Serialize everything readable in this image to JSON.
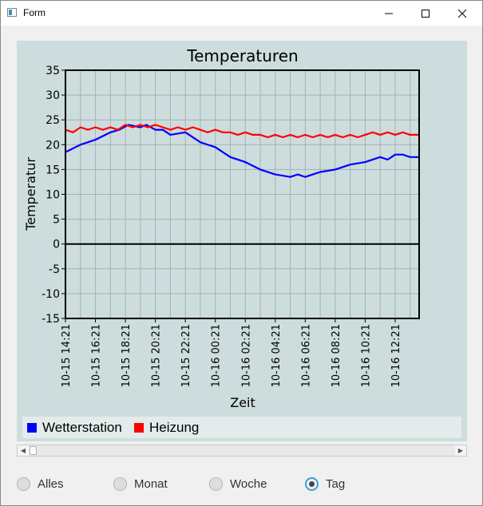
{
  "window": {
    "title": "Form",
    "icon": "form-app-icon"
  },
  "chart_data": {
    "type": "line",
    "title": "Temperaturen",
    "xlabel": "Zeit",
    "ylabel": "Temperatur",
    "ylim": [
      -15,
      35
    ],
    "yticks": [
      35,
      30,
      25,
      20,
      15,
      10,
      5,
      0,
      -5,
      -10,
      -15
    ],
    "x_tick_labels": [
      "10-15 14:21",
      "10-15 16:21",
      "10-15 18:21",
      "10-15 20:21",
      "10-15 22:21",
      "10-16 00:21",
      "10-16 02:21",
      "10-16 04:21",
      "10-16 06:21",
      "10-16 08:21",
      "10-16 10:21",
      "10-16 12:21"
    ],
    "xlim_hours": [
      0,
      23.6
    ],
    "grid": true,
    "legend_placement": "bottom",
    "series": [
      {
        "name": "Wetterstation",
        "color": "#0000ff",
        "x": [
          0,
          1,
          2,
          3,
          3.6,
          4.2,
          5,
          5.4,
          6,
          6.5,
          7,
          8,
          9,
          10,
          11,
          12,
          13,
          14,
          15,
          15.5,
          16,
          16.5,
          17,
          18,
          19,
          20,
          21,
          21.5,
          22,
          22.5,
          23,
          23.6
        ],
        "y": [
          18.5,
          20,
          21,
          22.5,
          23,
          24,
          23.5,
          24,
          23,
          23,
          22,
          22.5,
          20.5,
          19.5,
          17.5,
          16.5,
          15,
          14,
          13.5,
          14,
          13.5,
          14,
          14.5,
          15,
          16,
          16.5,
          17.5,
          17,
          18,
          18,
          17.5,
          17.5
        ]
      },
      {
        "name": "Heizung",
        "color": "#ff0000",
        "x": [
          0,
          0.5,
          1,
          1.5,
          2,
          2.5,
          3,
          3.5,
          4,
          4.5,
          5,
          5.5,
          6,
          6.5,
          7,
          7.5,
          8,
          8.5,
          9,
          9.5,
          10,
          10.5,
          11,
          11.5,
          12,
          12.5,
          13,
          13.5,
          14,
          14.5,
          15,
          15.5,
          16,
          16.5,
          17,
          17.5,
          18,
          18.5,
          19,
          19.5,
          20,
          20.5,
          21,
          21.5,
          22,
          22.5,
          23,
          23.6
        ],
        "y": [
          23,
          22.5,
          23.5,
          23,
          23.5,
          23,
          23.5,
          23,
          24,
          23.5,
          24,
          23.5,
          24,
          23.5,
          23,
          23.5,
          23,
          23.5,
          23,
          22.5,
          23,
          22.5,
          22.5,
          22,
          22.5,
          22,
          22,
          21.5,
          22,
          21.5,
          22,
          21.5,
          22,
          21.5,
          22,
          21.5,
          22,
          21.5,
          22,
          21.5,
          22,
          22.5,
          22,
          22.5,
          22,
          22.5,
          22,
          22
        ]
      }
    ]
  },
  "legend": {
    "items": [
      {
        "label": "Wetterstation",
        "color": "#0000ff"
      },
      {
        "label": "Heizung",
        "color": "#ff0000"
      }
    ]
  },
  "radios": {
    "alles": "Alles",
    "monat": "Monat",
    "woche": "Woche",
    "tag": "Tag",
    "selected": "Tag"
  }
}
